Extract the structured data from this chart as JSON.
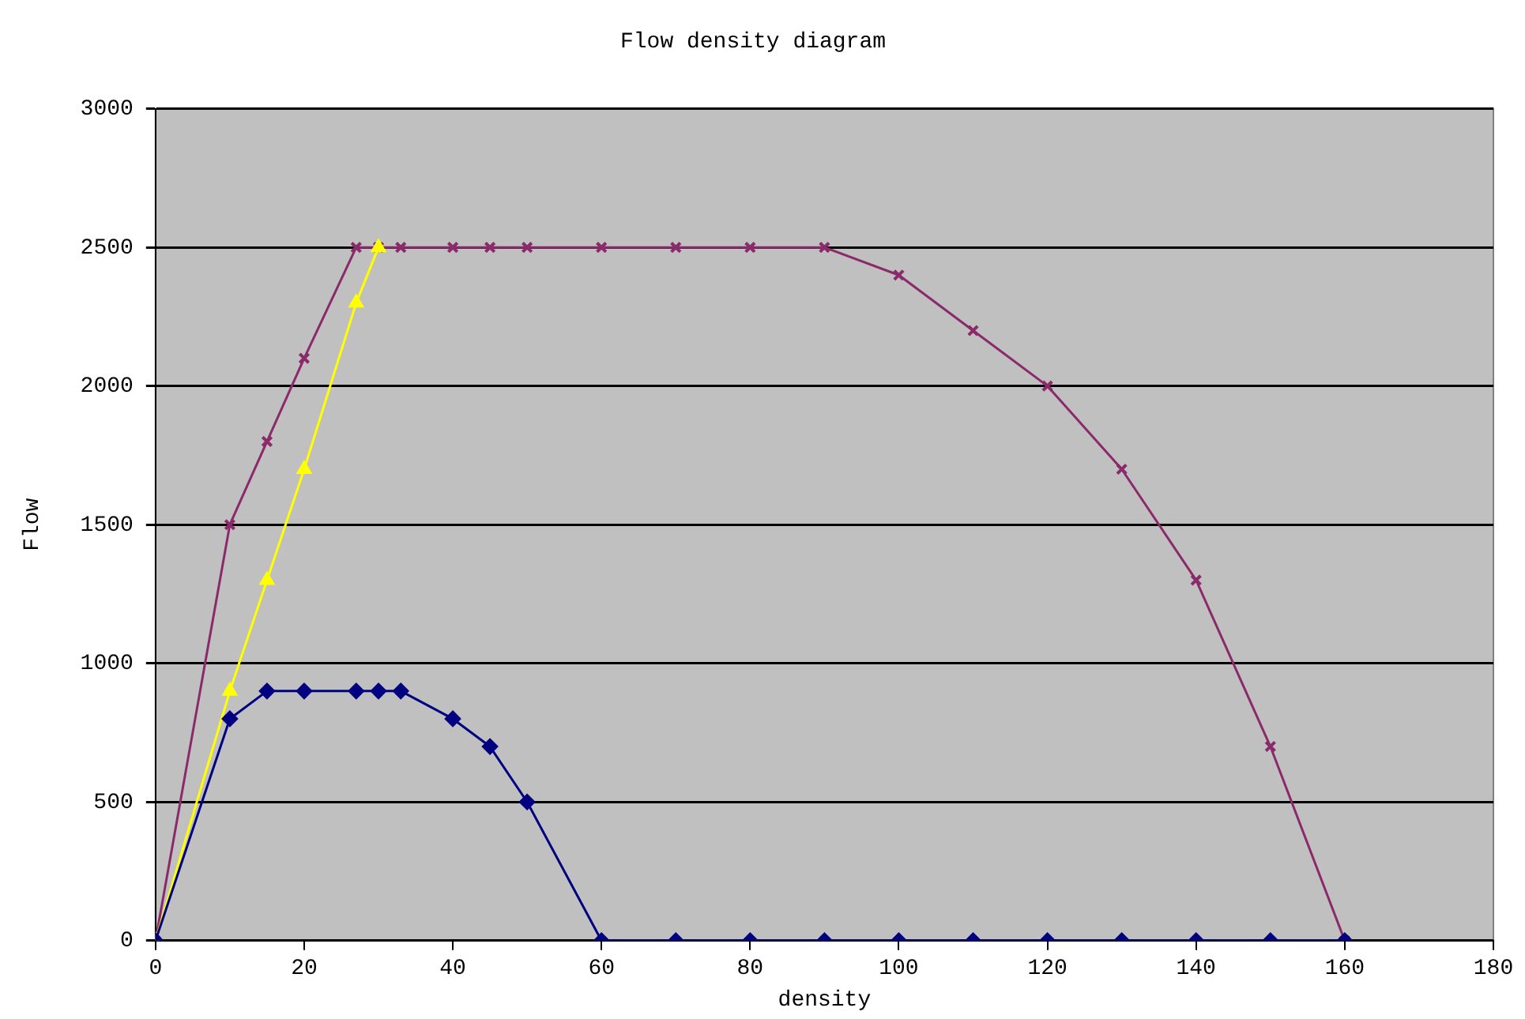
{
  "chart_data": {
    "type": "line",
    "title": "Flow density diagram",
    "xlabel": "density",
    "ylabel": "Flow",
    "xlim": [
      0,
      180
    ],
    "xticks": [
      0,
      20,
      40,
      60,
      80,
      100,
      120,
      140,
      160,
      180
    ],
    "ylim": [
      0,
      3000
    ],
    "yticks": [
      0,
      500,
      1000,
      1500,
      2000,
      2500,
      3000
    ],
    "grid": "y",
    "legend": false,
    "series": [
      {
        "color": "#8b2a6b",
        "marker": "cross",
        "x": [
          0,
          10,
          15,
          20,
          27,
          30,
          33,
          40,
          45,
          50,
          60,
          70,
          80,
          90,
          100,
          110,
          120,
          130,
          140,
          150,
          160
        ],
        "values": [
          0,
          1500,
          1800,
          2100,
          2500,
          2500,
          2500,
          2500,
          2500,
          2500,
          2500,
          2500,
          2500,
          2500,
          2400,
          2200,
          2000,
          1700,
          1300,
          700,
          0
        ]
      },
      {
        "color": "#ffff00",
        "marker": "triangle",
        "x": [
          0,
          10,
          15,
          20,
          27,
          30
        ],
        "values": [
          0,
          900,
          1300,
          1700,
          2300,
          2500
        ]
      },
      {
        "color": "#000080",
        "marker": "diamond",
        "x": [
          0,
          10,
          15,
          20,
          27,
          30,
          33,
          40,
          45,
          50,
          60,
          70,
          80,
          90,
          100,
          110,
          120,
          130,
          140,
          150,
          160
        ],
        "values": [
          0,
          800,
          900,
          900,
          900,
          900,
          900,
          800,
          700,
          500,
          0,
          0,
          0,
          0,
          0,
          0,
          0,
          0,
          0,
          0,
          0
        ]
      }
    ]
  }
}
